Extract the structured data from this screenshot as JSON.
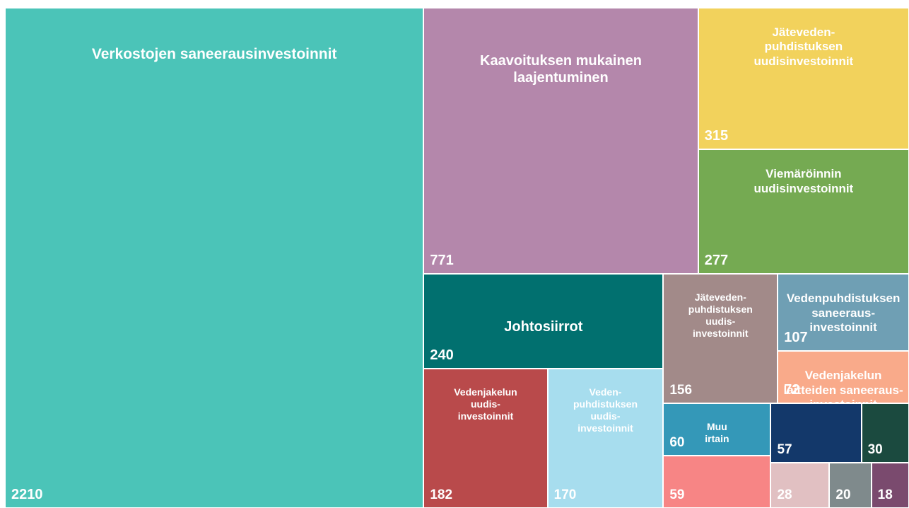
{
  "chart_data": {
    "type": "treemap",
    "names": [
      "Verkostojen saneerausinvestoinnit",
      "Kaavoituksen mukainen\nlaajentuminen",
      "Jäteveden-\npuhdistuksen\nuudisinvestoinnit",
      "Viemäröinnin\nuudisinvestoinnit",
      "Johtosiirrot",
      "Jäteveden-\npuhdistuksen\nuudis-\ninvestoinnit",
      "Vedenpuhdistuksen\nsaneeraus-\ninvestoinnit",
      "Vedenjakelun\nlaitteiden saneeraus-\ninvestoinnit",
      "Vedenjakelun\nuudis-\ninvestoinnit",
      "Veden-\npuhdistuksen\nuudis-\ninvestoinnit",
      "Muu\nirtain",
      null,
      null,
      null,
      null,
      null,
      null
    ],
    "values": [
      2210,
      771,
      315,
      277,
      240,
      156,
      107,
      72,
      182,
      170,
      60,
      57,
      30,
      59,
      28,
      20,
      18
    ],
    "colors": [
      "#4bc4b8",
      "#b487ab",
      "#f2d25c",
      "#75aa52",
      "#01706f",
      "#a28a89",
      "#6f9fb4",
      "#f9aa8a",
      "#b94a4b",
      "#a7ddee",
      "#3498b8",
      "#13386a",
      "#1b4a3f",
      "#f78585",
      "#e1c0c2",
      "#7f8a8c",
      "#7a4a6e"
    ]
  }
}
